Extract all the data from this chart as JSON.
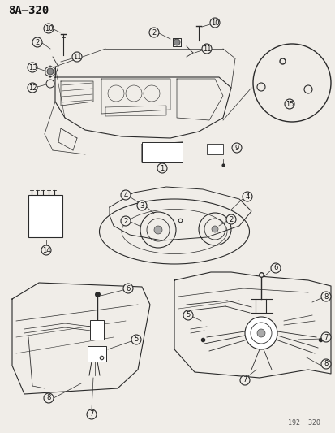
{
  "title": "8A–320",
  "footer": "192  320",
  "bg_color": "#f0ede8",
  "line_color": "#2a2a2a",
  "label_color": "#111111",
  "fig_width": 4.14,
  "fig_height": 5.33,
  "dpi": 100
}
